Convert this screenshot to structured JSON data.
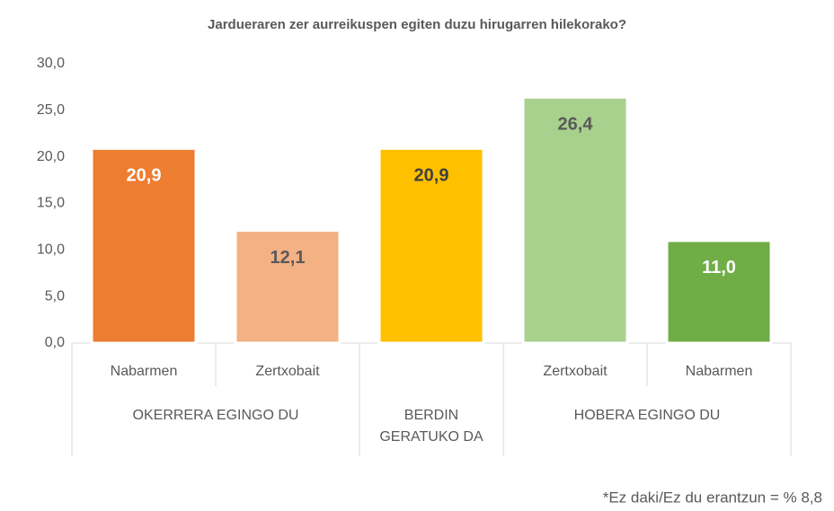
{
  "chart_data": {
    "type": "bar",
    "title": "Jardueraren zer aurreikuspen egiten duzu hirugarren hilekorako?",
    "categories": [
      "Nabarmen",
      "Zertxobait",
      null,
      "Zertxobait",
      "Nabarmen"
    ],
    "category_groups": [
      "OKERRERA EGINGO DU",
      "OKERRERA EGINGO DU",
      "BERDIN GERATUKO DA",
      "HOBERA EGINGO DU",
      "HOBERA EGINGO DU"
    ],
    "values": [
      20.9,
      12.1,
      20.9,
      26.4,
      11.0
    ],
    "value_labels": [
      "20,9",
      "12,1",
      "20,9",
      "26,4",
      "11,0"
    ],
    "colors": [
      "#ed7d31",
      "#f4b183",
      "#ffc000",
      "#a9d18e",
      "#70ad47"
    ],
    "label_colors": [
      "#ffffff",
      "#595959",
      "#404040",
      "#595959",
      "#ffffff"
    ],
    "ylim": [
      0,
      30
    ],
    "yticks": [
      {
        "value": 0,
        "label": "0,0"
      },
      {
        "value": 5,
        "label": "5,0"
      },
      {
        "value": 10,
        "label": "10,0"
      },
      {
        "value": 15,
        "label": "15,0"
      },
      {
        "value": 20,
        "label": "20,0"
      },
      {
        "value": 25,
        "label": "25,0"
      },
      {
        "value": 30,
        "label": "30,0"
      }
    ],
    "grid": false,
    "note": "*Ez daki/Ez du erantzun = % 8,8"
  }
}
